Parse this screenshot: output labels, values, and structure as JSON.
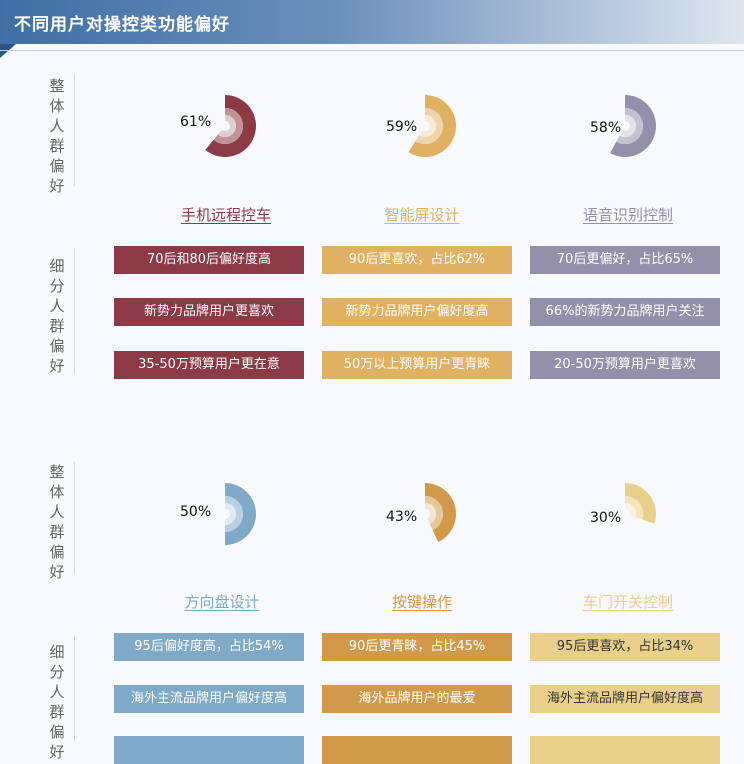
{
  "title": "不同用户对操控类功能偏好",
  "labels": {
    "overall_chars": [
      "整",
      "体",
      "人",
      "群",
      "偏",
      "好"
    ],
    "segment_chars": [
      "细",
      "分",
      "人",
      "群",
      "偏",
      "好"
    ]
  },
  "colors": {
    "red": "#8c3a46",
    "gold": "#e0b063",
    "gray": "#9590aa",
    "blue": "#7ea9c7",
    "orange": "#d09a4a",
    "yellow": "#e8d08a"
  },
  "sections": [
    {
      "features": [
        {
          "name": "手机远程控车",
          "percent": 61,
          "percent_label": "61%",
          "color": "#8c3a46",
          "tags": [
            "70后和80后偏好度高",
            "新势力品牌用户更喜欢",
            "35-50万预算用户更在意"
          ]
        },
        {
          "name": "智能屏设计",
          "percent": 59,
          "percent_label": "59%",
          "color": "#e0b063",
          "tags": [
            "90后更喜欢，占比62%",
            "新势力品牌用户偏好度高",
            "50万以上预算用户更青睐"
          ]
        },
        {
          "name": "语音识别控制",
          "percent": 58,
          "percent_label": "58%",
          "color": "#9590aa",
          "tags": [
            "70后更偏好，占比65%",
            "66%的新势力品牌用户关注",
            "20-50万预算用户更喜欢"
          ]
        }
      ]
    },
    {
      "features": [
        {
          "name": "方向盘设计",
          "percent": 50,
          "percent_label": "50%",
          "color": "#7ea9c7",
          "tags": [
            "95后偏好度高，占比54%",
            "海外主流品牌用户偏好度高",
            ""
          ]
        },
        {
          "name": "按键操作",
          "percent": 43,
          "percent_label": "43%",
          "color": "#d09a4a",
          "tags": [
            "90后更青睐，占比45%",
            "海外品牌用户的最爱",
            ""
          ]
        },
        {
          "name": "车门开关控制",
          "percent": 30,
          "percent_label": "30%",
          "color": "#e8d08a",
          "tags": [
            "95后更喜欢，占比34%",
            "海外主流品牌用户偏好度高",
            ""
          ]
        }
      ]
    }
  ]
}
